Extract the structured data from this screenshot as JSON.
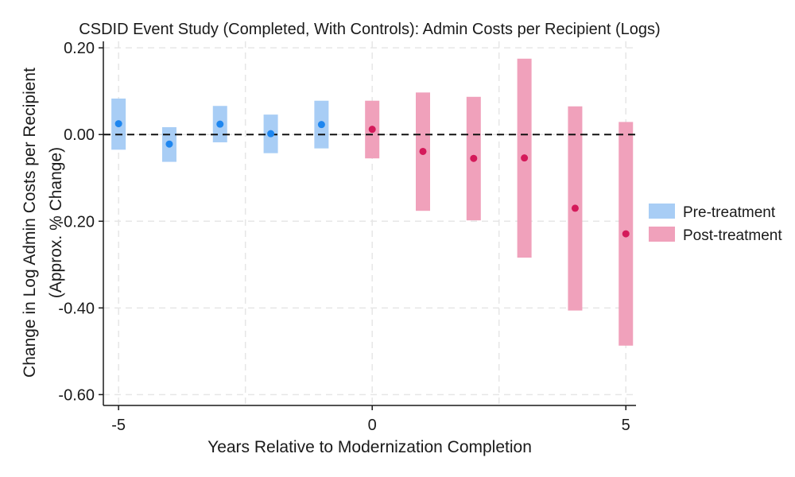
{
  "chart_data": {
    "type": "scatter",
    "title": "CSDID Event Study (Completed, With Controls): Admin Costs per Recipient (Logs)",
    "xlabel": "Years Relative to Modernization Completion",
    "ylabel_line1": "Change in Log Admin Costs per Recipient",
    "ylabel_line2": "(Approx. % Change)",
    "xlim": [
      -5.3,
      5.2
    ],
    "ylim": [
      -0.625,
      0.215
    ],
    "xticks": [
      -5,
      0,
      5
    ],
    "xtick_labels": [
      "-5",
      "0",
      "5"
    ],
    "yticks": [
      0.2,
      0.0,
      -0.2,
      -0.4,
      -0.6
    ],
    "ytick_labels": [
      "0.20",
      "0.00",
      "-0.20",
      "-0.40",
      "-0.60"
    ],
    "xgrid": [
      -5,
      -2.5,
      0,
      2.5,
      5
    ],
    "ygrid": [
      0.2,
      0.0,
      -0.2,
      -0.4,
      -0.6
    ],
    "reference_line": 0,
    "legend_position": "right",
    "series": [
      {
        "name": "Pre-treatment",
        "ci_color": "#a8cdf5",
        "point_color": "#1e86ef",
        "points": [
          {
            "x": -5,
            "y": 0.025,
            "lo": -0.035,
            "hi": 0.083
          },
          {
            "x": -4,
            "y": -0.022,
            "lo": -0.063,
            "hi": 0.017
          },
          {
            "x": -3,
            "y": 0.024,
            "lo": -0.018,
            "hi": 0.066
          },
          {
            "x": -2,
            "y": 0.002,
            "lo": -0.043,
            "hi": 0.046
          },
          {
            "x": -1,
            "y": 0.023,
            "lo": -0.032,
            "hi": 0.078
          }
        ]
      },
      {
        "name": "Post-treatment",
        "ci_color": "#f0a1bb",
        "point_color": "#d41a5a",
        "points": [
          {
            "x": 0,
            "y": 0.012,
            "lo": -0.055,
            "hi": 0.078
          },
          {
            "x": 1,
            "y": -0.039,
            "lo": -0.176,
            "hi": 0.097
          },
          {
            "x": 2,
            "y": -0.055,
            "lo": -0.198,
            "hi": 0.087
          },
          {
            "x": 3,
            "y": -0.054,
            "lo": -0.284,
            "hi": 0.175
          },
          {
            "x": 4,
            "y": -0.17,
            "lo": -0.406,
            "hi": 0.065
          },
          {
            "x": 5,
            "y": -0.229,
            "lo": -0.487,
            "hi": 0.029
          }
        ]
      }
    ]
  }
}
